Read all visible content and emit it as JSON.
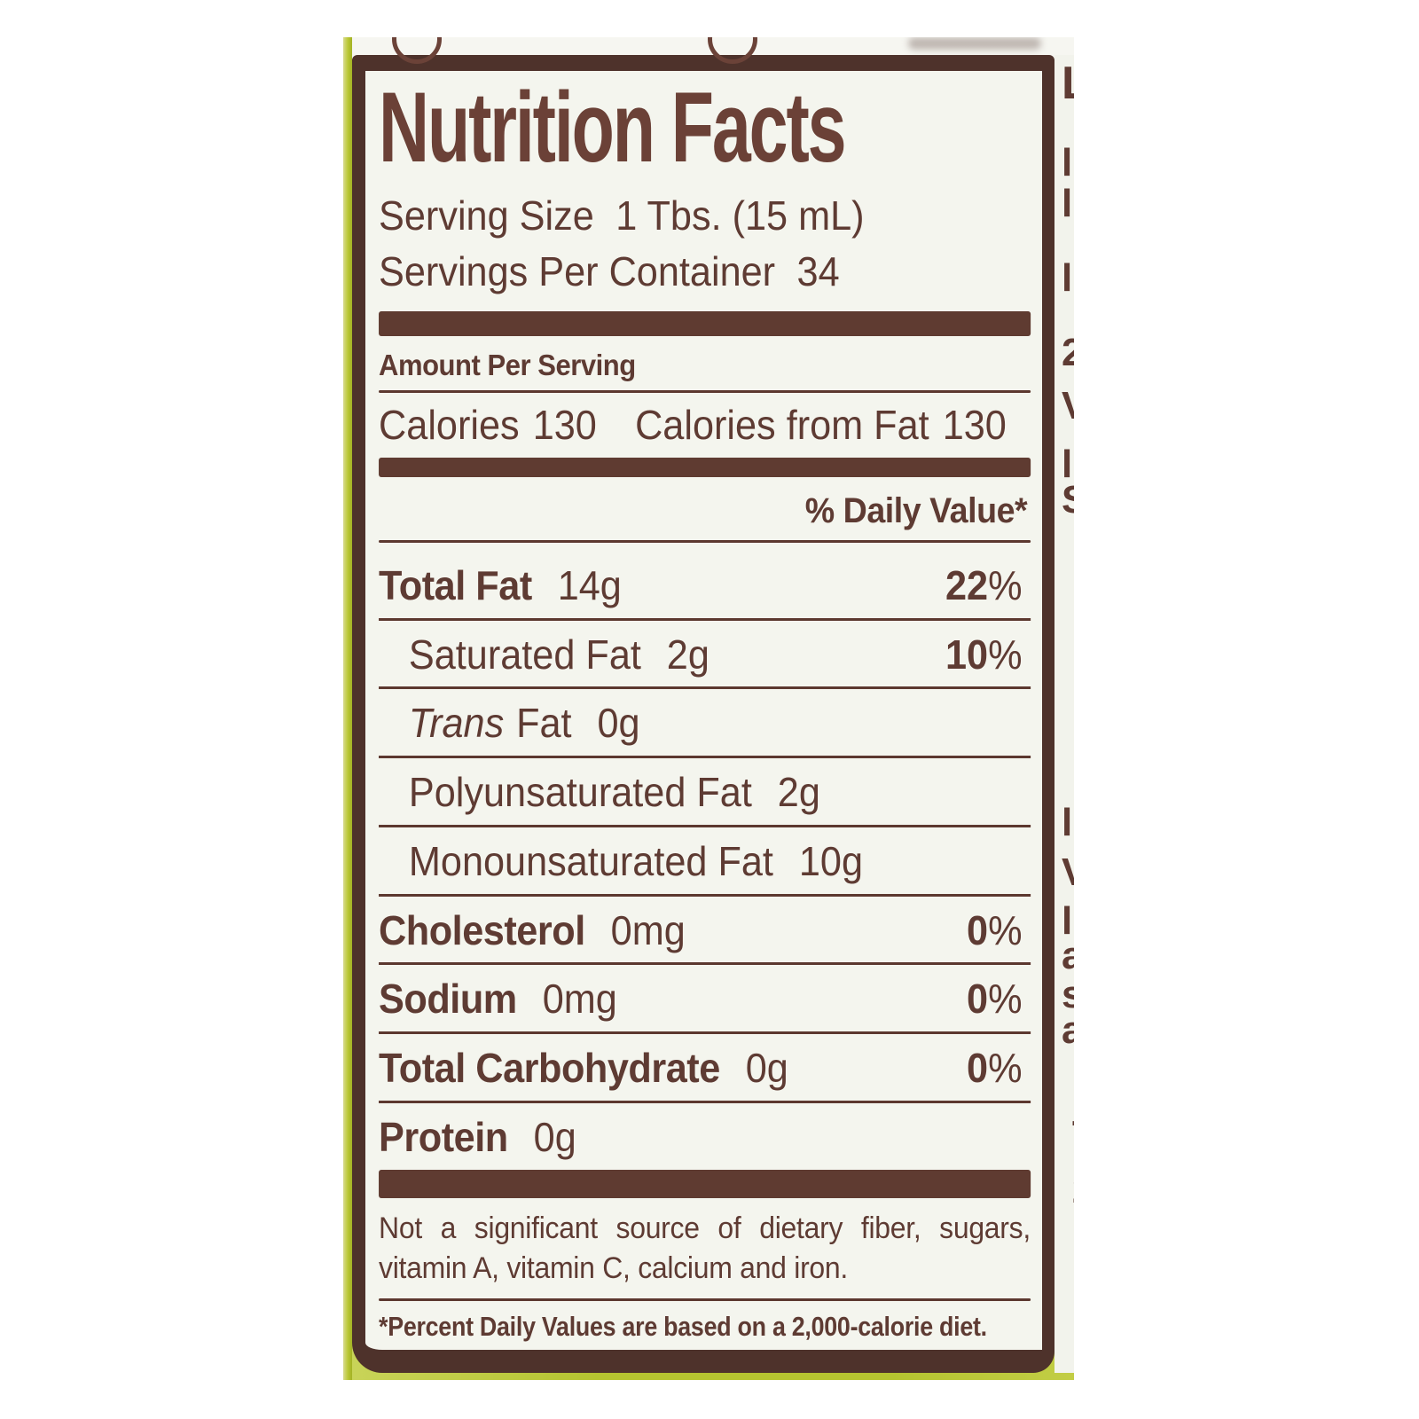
{
  "label": {
    "title": "Nutrition Facts",
    "serving_size": {
      "label": "Serving Size",
      "value": "1 Tbs. (15 mL)"
    },
    "servings_per_container": {
      "label": "Servings Per Container",
      "value": "34"
    },
    "amount_per_serving": "Amount Per Serving",
    "calories": {
      "label": "Calories",
      "value": "130"
    },
    "calories_from_fat": {
      "label": "Calories from Fat",
      "value": "130"
    },
    "daily_value_header": "% Daily Value*",
    "rows": [
      {
        "name": "Total Fat",
        "amount": "14g",
        "pct": "22",
        "pct_sign": "%",
        "style": "main"
      },
      {
        "name": "Saturated Fat",
        "amount": "2g",
        "pct": "10",
        "pct_sign": "%",
        "style": "sub"
      },
      {
        "italic_prefix": "Trans",
        "name": "Fat",
        "amount": "0g",
        "style": "sub"
      },
      {
        "name": "Polyunsaturated Fat",
        "amount": "2g",
        "style": "sub"
      },
      {
        "name": "Monounsaturated Fat",
        "amount": "10g",
        "style": "sub"
      },
      {
        "name": "Cholesterol",
        "amount": "0mg",
        "pct": "0",
        "pct_sign": "%",
        "style": "main"
      },
      {
        "name": "Sodium",
        "amount": "0mg",
        "pct": "0",
        "pct_sign": "%",
        "style": "main"
      },
      {
        "name": "Total Carbohydrate",
        "amount": "0g",
        "pct": "0",
        "pct_sign": "%",
        "style": "main"
      },
      {
        "name": "Protein",
        "amount": "0g",
        "style": "main"
      }
    ],
    "note": "Not a significant source of dietary fiber, sugars, vitamin A, vitamin C, calcium and iron.",
    "footnote": "*Percent Daily Values are based on a 2,000-calorie diet."
  },
  "photo": {
    "fragments": [
      {
        "char": "L"
      },
      {
        "char": "l"
      },
      {
        "char": "l"
      },
      {
        "char": "l"
      },
      {
        "char": "2"
      },
      {
        "char": "V"
      },
      {
        "char": "l"
      },
      {
        "char": "S"
      },
      {
        "char": "l"
      },
      {
        "char": "V"
      },
      {
        "char": "l"
      },
      {
        "char": "a"
      },
      {
        "char": "s"
      },
      {
        "char": "a"
      },
      {
        "char": "T"
      },
      {
        "char": "2"
      }
    ]
  },
  "colors": {
    "label_text_brown": "#5e3b33",
    "title_brown": "#6b4137",
    "panel_border_brown": "#4e322b",
    "divider_brown": "#5c382f",
    "label_background": "#f4f5ee",
    "bottle_green": "#b5c430",
    "page_background": "#ffffff"
  }
}
